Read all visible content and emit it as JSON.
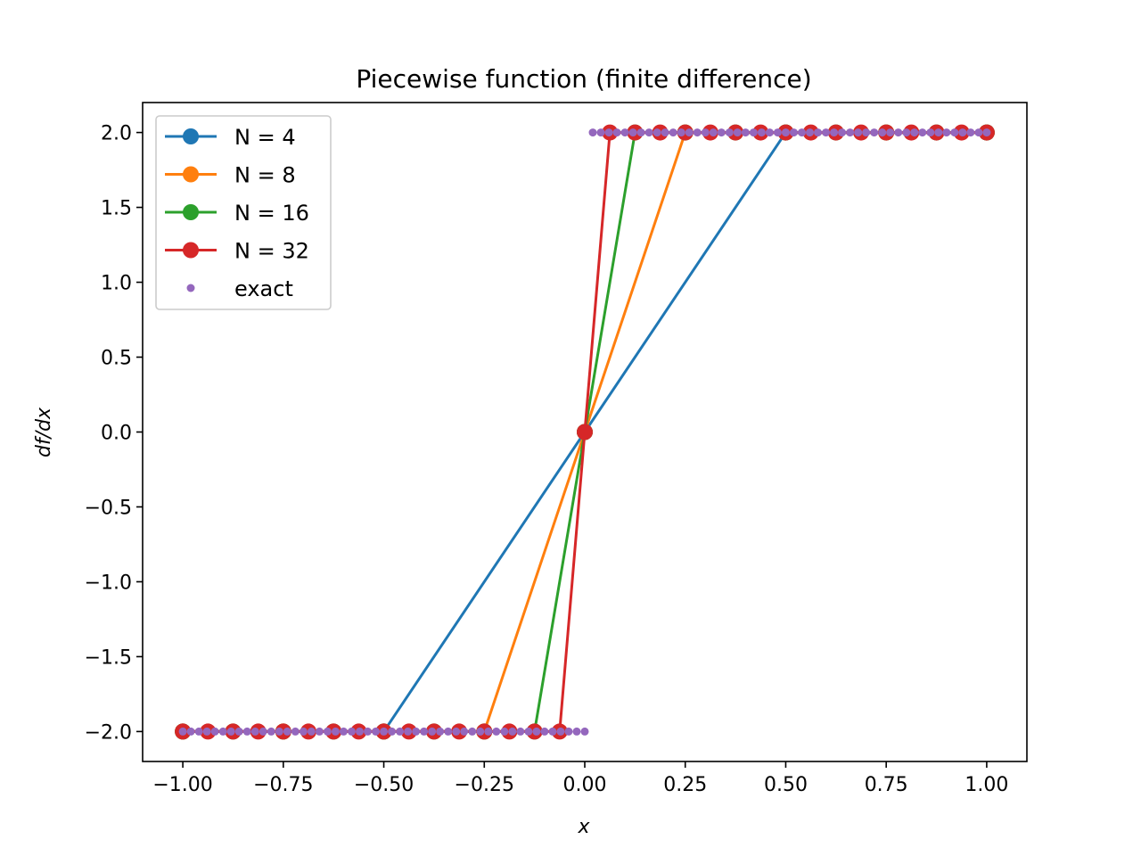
{
  "chart_data": {
    "type": "line",
    "title": "Piecewise function (finite difference)",
    "xlabel": "x",
    "ylabel": "df/dx",
    "xlim": [
      -1.1,
      1.1
    ],
    "ylim": [
      -2.2,
      2.2
    ],
    "grid": false,
    "legend_position": "top-left",
    "xticks": [
      -1.0,
      -0.75,
      -0.5,
      -0.25,
      0.0,
      0.25,
      0.5,
      0.75,
      1.0
    ],
    "xtick_labels": [
      "−1.00",
      "−0.75",
      "−0.50",
      "−0.25",
      "0.00",
      "0.25",
      "0.50",
      "0.75",
      "1.00"
    ],
    "yticks": [
      2.0,
      1.5,
      1.0,
      0.5,
      0.0,
      -0.5,
      -1.0,
      -1.5,
      -2.0
    ],
    "ytick_labels": [
      "2.0",
      "1.5",
      "1.0",
      "0.5",
      "0.0",
      "−0.5",
      "−1.0",
      "−1.5",
      "−2.0"
    ],
    "series": [
      {
        "name": "N = 4",
        "color": "#1f77b4",
        "style": "line-marker",
        "x": [
          -1.0,
          -0.5,
          0.0,
          0.5,
          1.0
        ],
        "y": [
          -2,
          -2,
          0,
          2,
          2
        ]
      },
      {
        "name": "N = 8",
        "color": "#ff7f0e",
        "style": "line-marker",
        "x": [
          -1.0,
          -0.75,
          -0.5,
          -0.25,
          0.0,
          0.25,
          0.5,
          0.75,
          1.0
        ],
        "y": [
          -2,
          -2,
          -2,
          -2,
          0,
          2,
          2,
          2,
          2
        ]
      },
      {
        "name": "N = 16",
        "color": "#2ca02c",
        "style": "line-marker",
        "x": [
          -1.0,
          -0.875,
          -0.75,
          -0.625,
          -0.5,
          -0.375,
          -0.25,
          -0.125,
          0.0,
          0.125,
          0.25,
          0.375,
          0.5,
          0.625,
          0.75,
          0.875,
          1.0
        ],
        "y": [
          -2,
          -2,
          -2,
          -2,
          -2,
          -2,
          -2,
          -2,
          0,
          2,
          2,
          2,
          2,
          2,
          2,
          2,
          2
        ]
      },
      {
        "name": "N = 32",
        "color": "#d62728",
        "style": "line-marker",
        "x": [
          -1.0,
          -0.9375,
          -0.875,
          -0.8125,
          -0.75,
          -0.6875,
          -0.625,
          -0.5625,
          -0.5,
          -0.4375,
          -0.375,
          -0.3125,
          -0.25,
          -0.1875,
          -0.125,
          -0.0625,
          0.0,
          0.0625,
          0.125,
          0.1875,
          0.25,
          0.3125,
          0.375,
          0.4375,
          0.5,
          0.5625,
          0.625,
          0.6875,
          0.75,
          0.8125,
          0.875,
          0.9375,
          1.0
        ],
        "y": [
          -2,
          -2,
          -2,
          -2,
          -2,
          -2,
          -2,
          -2,
          -2,
          -2,
          -2,
          -2,
          -2,
          -2,
          -2,
          -2,
          0,
          2,
          2,
          2,
          2,
          2,
          2,
          2,
          2,
          2,
          2,
          2,
          2,
          2,
          2,
          2,
          2
        ]
      },
      {
        "name": "exact",
        "color": "#9467bd",
        "style": "dots",
        "x": [
          -1.0,
          -0.98,
          -0.96,
          -0.94,
          -0.92,
          -0.9,
          -0.88,
          -0.86,
          -0.84,
          -0.82,
          -0.8,
          -0.78,
          -0.76,
          -0.74,
          -0.72,
          -0.7,
          -0.68,
          -0.66,
          -0.64,
          -0.62,
          -0.6,
          -0.58,
          -0.56,
          -0.54,
          -0.52,
          -0.5,
          -0.48,
          -0.46,
          -0.44,
          -0.42,
          -0.4,
          -0.38,
          -0.36,
          -0.34,
          -0.32,
          -0.3,
          -0.28,
          -0.26,
          -0.24,
          -0.22,
          -0.2,
          -0.18,
          -0.16,
          -0.14,
          -0.12,
          -0.1,
          -0.08,
          -0.06,
          -0.04,
          -0.02,
          0.0,
          0.02,
          0.04,
          0.06,
          0.08,
          0.1,
          0.12,
          0.14,
          0.16,
          0.18,
          0.2,
          0.22,
          0.24,
          0.26,
          0.28,
          0.3,
          0.32,
          0.34,
          0.36,
          0.38,
          0.4,
          0.42,
          0.44,
          0.46,
          0.48,
          0.5,
          0.52,
          0.54,
          0.56,
          0.58,
          0.6,
          0.62,
          0.64,
          0.66,
          0.68,
          0.7,
          0.72,
          0.74,
          0.76,
          0.78,
          0.8,
          0.82,
          0.84,
          0.86,
          0.88,
          0.9,
          0.92,
          0.94,
          0.96,
          0.98,
          1.0
        ],
        "y": [
          -2,
          -2,
          -2,
          -2,
          -2,
          -2,
          -2,
          -2,
          -2,
          -2,
          -2,
          -2,
          -2,
          -2,
          -2,
          -2,
          -2,
          -2,
          -2,
          -2,
          -2,
          -2,
          -2,
          -2,
          -2,
          -2,
          -2,
          -2,
          -2,
          -2,
          -2,
          -2,
          -2,
          -2,
          -2,
          -2,
          -2,
          -2,
          -2,
          -2,
          -2,
          -2,
          -2,
          -2,
          -2,
          -2,
          -2,
          -2,
          -2,
          -2,
          -2,
          2,
          2,
          2,
          2,
          2,
          2,
          2,
          2,
          2,
          2,
          2,
          2,
          2,
          2,
          2,
          2,
          2,
          2,
          2,
          2,
          2,
          2,
          2,
          2,
          2,
          2,
          2,
          2,
          2,
          2,
          2,
          2,
          2,
          2,
          2,
          2,
          2,
          2,
          2,
          2,
          2,
          2,
          2,
          2,
          2,
          2,
          2,
          2,
          2,
          2
        ]
      }
    ]
  }
}
